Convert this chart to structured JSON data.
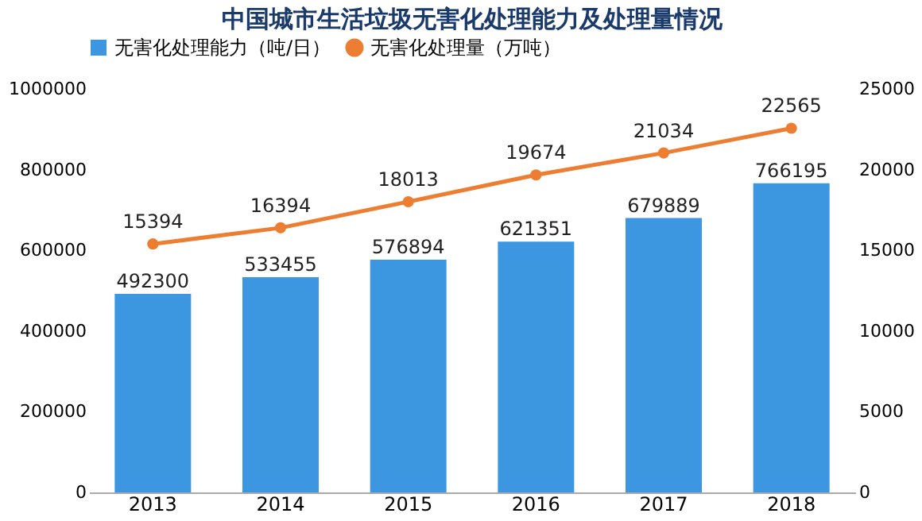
{
  "chart_data": {
    "type": "bar",
    "title": "中国城市生活垃圾无害化处理能力及处理量情况",
    "categories": [
      "2013",
      "2014",
      "2015",
      "2016",
      "2017",
      "2018"
    ],
    "series": [
      {
        "name": "无害化处理能力（吨/日）",
        "color": "#3c97e0",
        "values": [
          492300,
          533455,
          576894,
          621351,
          679889,
          766195
        ]
      },
      {
        "name": "无害化处理量（万吨）",
        "type": "line",
        "axis": "y2",
        "color": "#ed7d31",
        "marker": "circle",
        "values": [
          15394,
          16394,
          18013,
          19674,
          21034,
          22565
        ]
      }
    ],
    "ylim": [
      0,
      1000000
    ],
    "yticks": [
      0,
      200000,
      400000,
      600000,
      800000,
      1000000
    ],
    "y2lim": [
      0,
      25000
    ],
    "y2ticks": [
      0,
      5000,
      10000,
      15000,
      20000,
      25000
    ],
    "data_labels": true,
    "legend": "top"
  }
}
